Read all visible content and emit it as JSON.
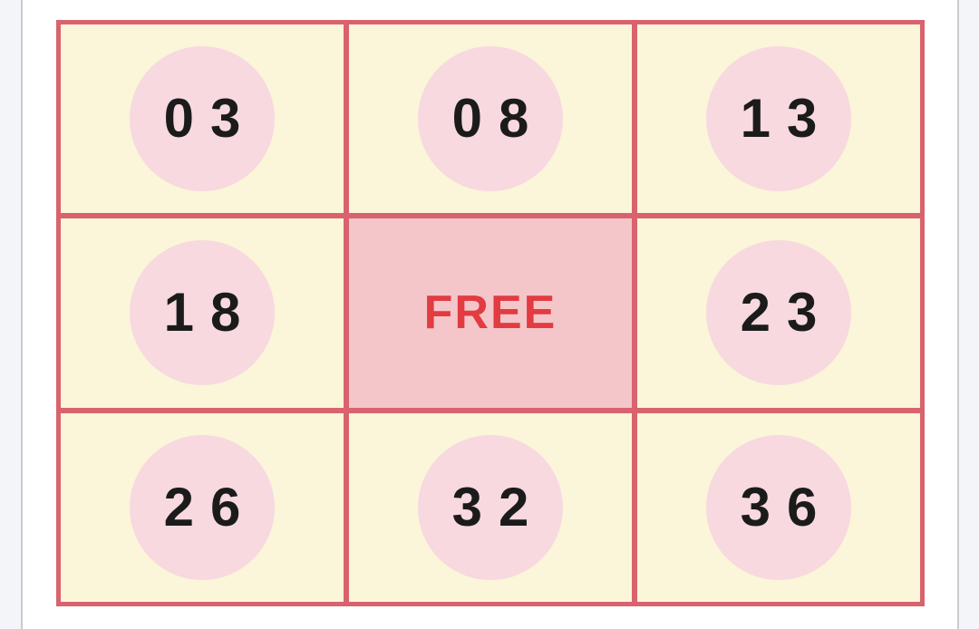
{
  "page": {
    "outer_background": "#f4f5f8",
    "content_background": "#ffffff",
    "divider_color": "#c9cbd0"
  },
  "card": {
    "name": "bingo-card",
    "rows": 3,
    "columns": 3,
    "cells": [
      {
        "label": "03",
        "kind": "number"
      },
      {
        "label": "08",
        "kind": "number"
      },
      {
        "label": "13",
        "kind": "number"
      },
      {
        "label": "18",
        "kind": "number"
      },
      {
        "label": "FREE",
        "kind": "free"
      },
      {
        "label": "23",
        "kind": "number"
      },
      {
        "label": "26",
        "kind": "number"
      },
      {
        "label": "32",
        "kind": "number"
      },
      {
        "label": "36",
        "kind": "number"
      }
    ],
    "colors": {
      "cell_background": "#fbf5da",
      "grid_border": "#d8636e",
      "number_chip": "#f7d9df",
      "number_text": "#1b1b1b",
      "free_background": "#f5c6c9",
      "free_text": "#e23b42"
    }
  }
}
